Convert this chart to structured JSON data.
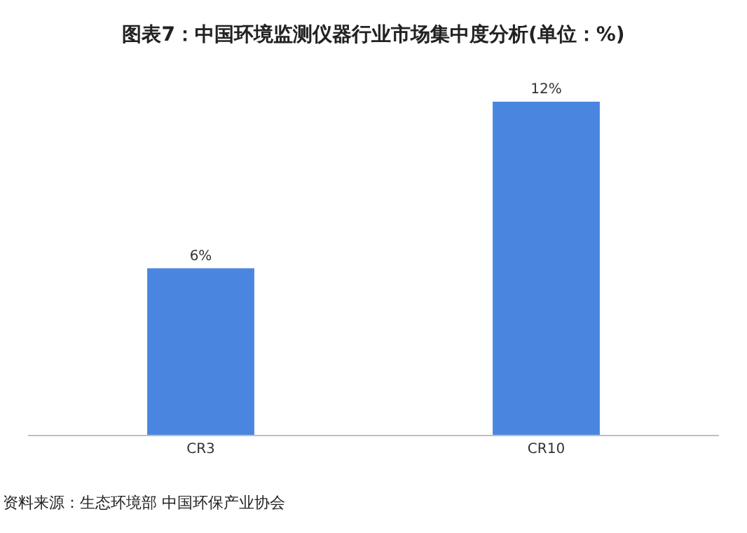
{
  "chart_data": {
    "type": "bar",
    "title": "图表7：中国环境监测仪器行业市场集中度分析(单位：%)",
    "categories": [
      "CR3",
      "CR10"
    ],
    "values": [
      6,
      12
    ],
    "value_labels": [
      "6%",
      "12%"
    ],
    "color": "#4a86e0",
    "legend": false,
    "annotations": [
      "资料来源：生态环境部 中国环保产业协会"
    ]
  }
}
